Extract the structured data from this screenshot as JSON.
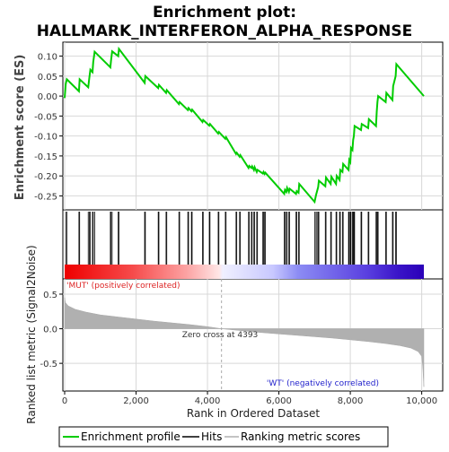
{
  "figure": {
    "title_line1": "Enrichment plot:",
    "title_line2": "HALLMARK_INTERFERON_ALPHA_RESPONSE",
    "colors": {
      "es_line": "#00cc00",
      "hits": "#000000",
      "metric_fill": "#b0b0b0",
      "pos_text": "#dd2222",
      "neg_text": "#2222cc",
      "zero_cross_line": "#aaaaaa"
    },
    "legend": {
      "items": [
        {
          "label": "Enrichment profile",
          "kind": "line",
          "color": "#00cc00"
        },
        {
          "label": "Hits",
          "kind": "line",
          "color": "#000000"
        },
        {
          "label": "Ranking metric scores",
          "kind": "line",
          "color": "#b0b0b0"
        }
      ]
    }
  },
  "chart_data": [
    {
      "type": "line",
      "name": "enrichment-profile",
      "ylabel": "Enrichment score (ES)",
      "xlim": [
        0,
        10500
      ],
      "ylim": [
        -0.285,
        0.135
      ],
      "yticks": [
        -0.25,
        -0.2,
        -0.15,
        -0.1,
        -0.05,
        0.0,
        0.05,
        0.1
      ],
      "ytick_labels": [
        "-0.25",
        "-0.20",
        "-0.15",
        "-0.10",
        "-0.05",
        "0.00",
        "0.05",
        "0.10"
      ],
      "grid": true,
      "series": [
        {
          "x": [
            0,
            30,
            60,
            400,
            420,
            660,
            690,
            720,
            780,
            800,
            840,
            1280,
            1300,
            1330,
            1500,
            1520,
            2240,
            2260,
            2620,
            2640,
            2840,
            2860,
            3200,
            3220,
            3450,
            3470,
            3550,
            3570,
            3860,
            3880,
            4050,
            4070,
            4300,
            4320,
            4500,
            4520,
            4800,
            4820,
            4900,
            4920,
            5150,
            5170,
            5230,
            5250,
            5300,
            5320,
            5380,
            5400,
            5550,
            5570,
            5600,
            5620,
            6150,
            6170,
            6210,
            6230,
            6280,
            6300,
            6480,
            6500,
            6550,
            6570,
            7000,
            7040,
            7070,
            7100,
            7120,
            7300,
            7320,
            7450,
            7470,
            7600,
            7620,
            7700,
            7720,
            7780,
            7800,
            7950,
            7970,
            8000,
            8020,
            8060,
            8080,
            8100,
            8120,
            8300,
            8320,
            8500,
            8520,
            8720,
            8740,
            8760,
            8780,
            8990,
            9010,
            9180,
            9200,
            9270,
            9290,
            10060
          ],
          "y": [
            -0.005,
            0.03,
            0.042,
            0.012,
            0.042,
            0.022,
            0.045,
            0.066,
            0.06,
            0.085,
            0.111,
            0.072,
            0.09,
            0.112,
            0.1,
            0.118,
            0.033,
            0.05,
            0.02,
            0.028,
            0.008,
            0.015,
            -0.02,
            -0.015,
            -0.035,
            -0.03,
            -0.038,
            -0.034,
            -0.065,
            -0.06,
            -0.074,
            -0.07,
            -0.094,
            -0.09,
            -0.107,
            -0.103,
            -0.145,
            -0.142,
            -0.152,
            -0.148,
            -0.18,
            -0.175,
            -0.18,
            -0.176,
            -0.185,
            -0.178,
            -0.19,
            -0.185,
            -0.194,
            -0.19,
            -0.195,
            -0.192,
            -0.245,
            -0.235,
            -0.24,
            -0.23,
            -0.24,
            -0.232,
            -0.245,
            -0.238,
            -0.242,
            -0.22,
            -0.265,
            -0.248,
            -0.238,
            -0.228,
            -0.212,
            -0.226,
            -0.204,
            -0.22,
            -0.202,
            -0.22,
            -0.2,
            -0.21,
            -0.185,
            -0.19,
            -0.17,
            -0.185,
            -0.16,
            -0.165,
            -0.13,
            -0.135,
            -0.11,
            -0.1,
            -0.075,
            -0.085,
            -0.07,
            -0.08,
            -0.058,
            -0.075,
            -0.04,
            -0.015,
            0.0,
            -0.015,
            0.008,
            -0.01,
            0.025,
            0.05,
            0.08,
            0.0
          ]
        }
      ]
    },
    {
      "type": "scatter",
      "name": "hits",
      "note_kind": "gene hit positions (rank)",
      "x": [
        30,
        60,
        400,
        420,
        660,
        690,
        720,
        780,
        800,
        840,
        1280,
        1300,
        1330,
        1500,
        1520,
        2240,
        2260,
        2620,
        2640,
        2840,
        2860,
        3200,
        3220,
        3450,
        3470,
        3550,
        3570,
        3860,
        3880,
        4050,
        4070,
        4300,
        4320,
        4500,
        4520,
        4800,
        4820,
        4900,
        4920,
        5150,
        5170,
        5230,
        5250,
        5300,
        5320,
        5380,
        5400,
        5550,
        5570,
        5600,
        5620,
        6150,
        6170,
        6210,
        6230,
        6280,
        6300,
        6480,
        6500,
        6550,
        6570,
        7000,
        7040,
        7070,
        7100,
        7120,
        7300,
        7320,
        7450,
        7470,
        7600,
        7620,
        7700,
        7720,
        7780,
        7800,
        7950,
        7970,
        8000,
        8020,
        8060,
        8080,
        8100,
        8120,
        8300,
        8320,
        8500,
        8520,
        8720,
        8740,
        8760,
        8780,
        8990,
        9010,
        9180,
        9200,
        9270,
        9290
      ]
    },
    {
      "type": "area",
      "name": "ranking-metric",
      "xlabel": "Rank in Ordered Dataset",
      "ylabel": "Ranked list metric (Signal2Noise)",
      "xlim": [
        0,
        10500
      ],
      "ylim": [
        -0.9,
        0.72
      ],
      "xticks": [
        0,
        2000,
        4000,
        6000,
        8000,
        10000
      ],
      "xtick_labels": [
        "0",
        "2,000",
        "4,000",
        "6,000",
        "8,000",
        "10,000"
      ],
      "yticks": [
        -0.5,
        0.0,
        0.5
      ],
      "ytick_labels": [
        "-0.5",
        "0.0",
        "0.5"
      ],
      "x": [
        0,
        20,
        100,
        300,
        600,
        1000,
        1500,
        2000,
        2500,
        3000,
        3500,
        4000,
        4393,
        5000,
        5500,
        6000,
        6500,
        7000,
        7500,
        8000,
        8500,
        9000,
        9400,
        9700,
        9900,
        10000,
        10030,
        10060
      ],
      "values": [
        0.45,
        0.38,
        0.33,
        0.28,
        0.24,
        0.2,
        0.17,
        0.14,
        0.11,
        0.085,
        0.06,
        0.03,
        0.0,
        -0.03,
        -0.055,
        -0.075,
        -0.095,
        -0.115,
        -0.135,
        -0.16,
        -0.185,
        -0.215,
        -0.245,
        -0.28,
        -0.33,
        -0.4,
        -0.55,
        -0.84
      ],
      "annotations": {
        "zero_cross": "Zero cross at 4393",
        "zero_cross_rank": 4393,
        "pos_label": "'MUT' (positively correlated)",
        "neg_label": "'WT' (negatively correlated)"
      }
    }
  ]
}
